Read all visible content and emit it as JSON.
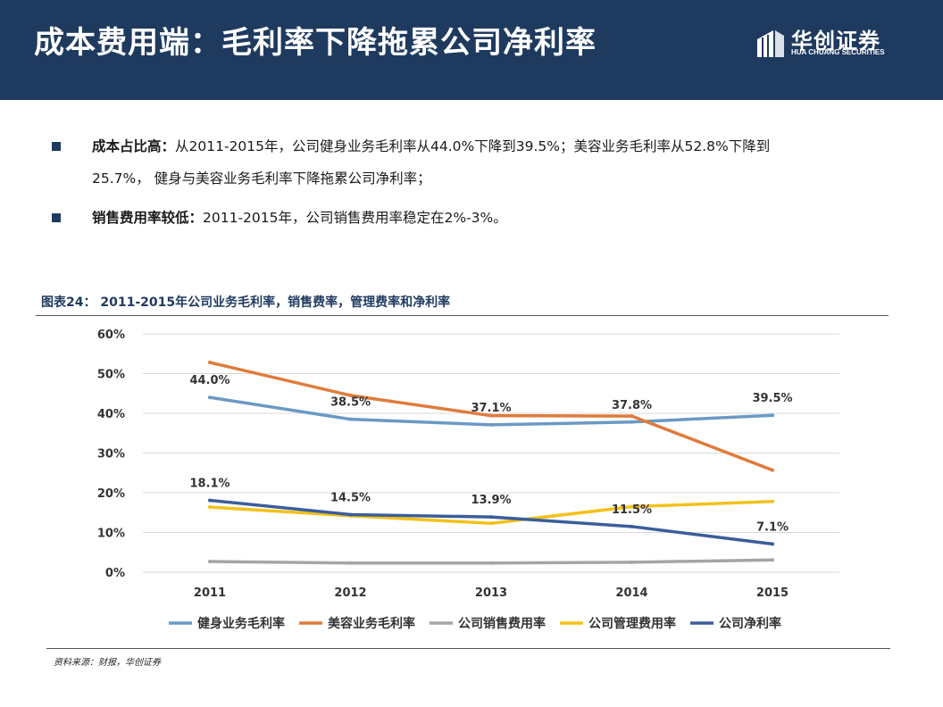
{
  "slide": {
    "title": "成本费用端：毛利率下降拖累公司净利率",
    "logo_cn": "华创证券",
    "logo_en": "HUA CHUANG SECURITIES",
    "bullets": [
      {
        "bold": "成本占比高：",
        "text": "从2011-2015年，公司健身业务毛利率从44.0%下降到39.5%；美容业务毛利率从52.8%下降到",
        "text2": "25.7%，  健身与美容业务毛利率下降拖累公司净利率；"
      },
      {
        "bold": "销售费用率较低：",
        "text": "2011-2015年，公司销售费用率稳定在2%-3%。"
      }
    ],
    "figure_caption": "图表24： 2011-2015年公司业务毛利率，销售费率，管理费率和净利率",
    "source": "资料来源：财报，华创证券"
  },
  "chart_data": {
    "type": "line",
    "x": [
      "2011",
      "2012",
      "2013",
      "2014",
      "2015"
    ],
    "ylim": [
      0,
      60
    ],
    "yticks": [
      "0%",
      "10%",
      "20%",
      "30%",
      "40%",
      "50%",
      "60%"
    ],
    "grid": true,
    "legend_position": "bottom",
    "series": [
      {
        "name": "健身业务毛利率",
        "color": "#6a9ac4",
        "values": [
          44.0,
          38.5,
          37.1,
          37.8,
          39.5
        ],
        "labels": [
          "44.0%",
          "38.5%",
          "37.1%",
          "37.8%",
          "39.5%"
        ]
      },
      {
        "name": "美容业务毛利率",
        "color": "#e07b3c",
        "values": [
          52.8,
          44.5,
          39.4,
          39.3,
          25.7
        ]
      },
      {
        "name": "公司销售费用率",
        "color": "#a5a5a5",
        "values": [
          2.7,
          2.3,
          2.3,
          2.5,
          3.1
        ]
      },
      {
        "name": "公司管理费用率",
        "color": "#f2c21b",
        "values": [
          16.4,
          14.2,
          12.3,
          16.5,
          17.8
        ]
      },
      {
        "name": "公司净利率",
        "color": "#3b5e9a",
        "values": [
          18.1,
          14.5,
          13.9,
          11.5,
          7.1
        ],
        "labels": [
          "18.1%",
          "14.5%",
          "13.9%",
          "11.5%",
          "7.1%"
        ]
      }
    ]
  }
}
